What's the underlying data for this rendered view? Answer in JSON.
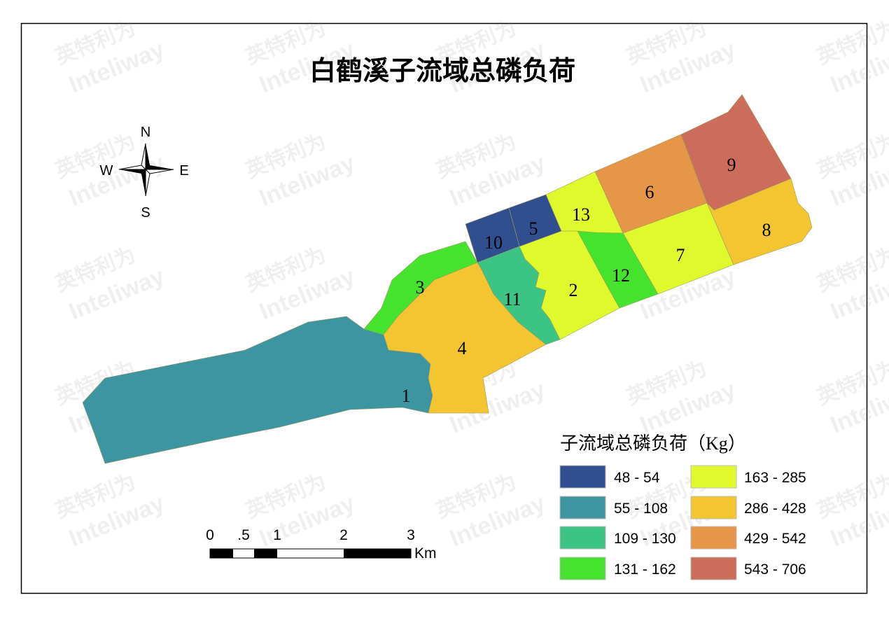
{
  "title": "白鹤溪子流域总磷负荷",
  "watermark": [
    "英特利为",
    "Inteliway"
  ],
  "compass": {
    "n": "N",
    "s": "S",
    "e": "E",
    "w": "W"
  },
  "scale_bar": {
    "labels": [
      "0",
      ".5",
      "1",
      "2",
      "3"
    ],
    "unit": "Km"
  },
  "legend": {
    "title": "子流域总磷负荷（Kg）",
    "classes": [
      {
        "label": "48 - 54",
        "color": "#314e8e"
      },
      {
        "label": "55 - 108",
        "color": "#3d95a2"
      },
      {
        "label": "109 - 130",
        "color": "#3cc484"
      },
      {
        "label": "131 - 162",
        "color": "#45e32e"
      },
      {
        "label": "163 - 285",
        "color": "#e0f92d"
      },
      {
        "label": "286 - 428",
        "color": "#f2c531"
      },
      {
        "label": "429 - 542",
        "color": "#e59646"
      },
      {
        "label": "543 - 706",
        "color": "#cc6c5a"
      }
    ]
  },
  "subbasins": [
    {
      "id": "1",
      "class": 1
    },
    {
      "id": "2",
      "class": 4
    },
    {
      "id": "3",
      "class": 3
    },
    {
      "id": "4",
      "class": 5
    },
    {
      "id": "5",
      "class": 0
    },
    {
      "id": "6",
      "class": 6
    },
    {
      "id": "7",
      "class": 4
    },
    {
      "id": "8",
      "class": 5
    },
    {
      "id": "9",
      "class": 7
    },
    {
      "id": "10",
      "class": 0
    },
    {
      "id": "11",
      "class": 2
    },
    {
      "id": "12",
      "class": 3
    },
    {
      "id": "13",
      "class": 4
    }
  ]
}
